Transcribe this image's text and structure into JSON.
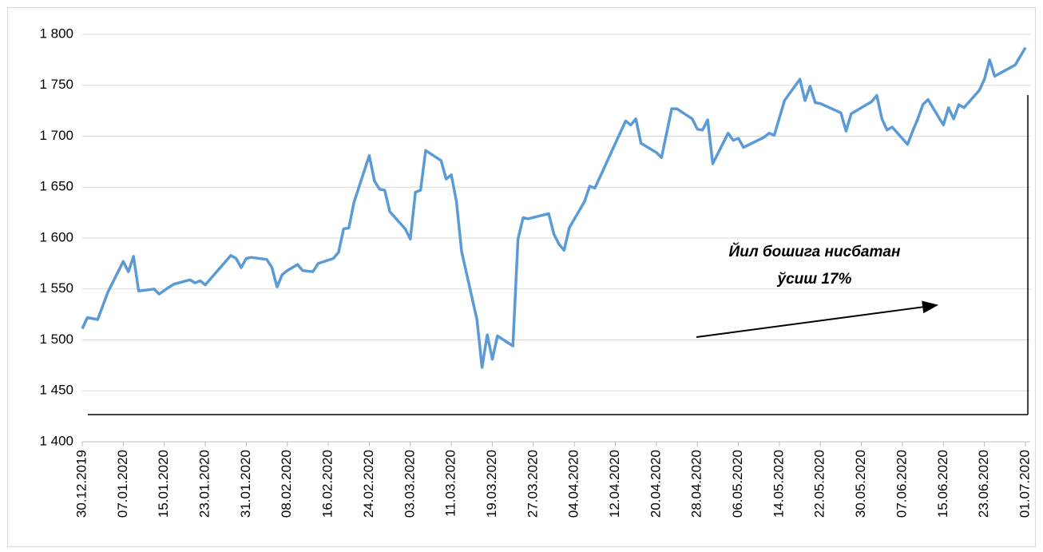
{
  "chart_data": {
    "type": "line",
    "x": [
      "30.12.2019",
      "31.12.2019",
      "02.01.2020",
      "04.01.2020",
      "07.01.2020",
      "08.01.2020",
      "09.01.2020",
      "10.01.2020",
      "13.01.2020",
      "14.01.2020",
      "16.01.2020",
      "17.01.2020",
      "20.01.2020",
      "21.01.2020",
      "22.01.2020",
      "23.01.2020",
      "28.01.2020",
      "29.01.2020",
      "30.01.2020",
      "31.01.2020",
      "01.02.2020",
      "04.02.2020",
      "05.02.2020",
      "06.02.2020",
      "07.02.2020",
      "08.02.2020",
      "10.02.2020",
      "11.02.2020",
      "13.02.2020",
      "14.02.2020",
      "17.02.2020",
      "18.02.2020",
      "19.02.2020",
      "20.02.2020",
      "21.02.2020",
      "24.02.2020",
      "25.02.2020",
      "26.02.2020",
      "27.02.2020",
      "28.02.2020",
      "02.03.2020",
      "03.03.2020",
      "04.03.2020",
      "05.03.2020",
      "06.03.2020",
      "09.03.2020",
      "10.03.2020",
      "11.03.2020",
      "12.03.2020",
      "13.03.2020",
      "16.03.2020",
      "17.03.2020",
      "18.03.2020",
      "19.03.2020",
      "20.03.2020",
      "23.03.2020",
      "24.03.2020",
      "25.03.2020",
      "26.03.2020",
      "30.03.2020",
      "31.03.2020",
      "01.04.2020",
      "02.04.2020",
      "03.04.2020",
      "06.04.2020",
      "07.04.2020",
      "08.04.2020",
      "09.04.2020",
      "14.04.2020",
      "15.04.2020",
      "16.04.2020",
      "17.04.2020",
      "20.04.2020",
      "21.04.2020",
      "23.04.2020",
      "24.04.2020",
      "27.04.2020",
      "28.04.2020",
      "29.04.2020",
      "30.04.2020",
      "01.05.2020",
      "04.05.2020",
      "05.05.2020",
      "06.05.2020",
      "07.05.2020",
      "11.05.2020",
      "12.05.2020",
      "13.05.2020",
      "15.05.2020",
      "18.05.2020",
      "19.05.2020",
      "20.05.2020",
      "21.05.2020",
      "22.05.2020",
      "26.05.2020",
      "27.05.2020",
      "28.05.2020",
      "29.05.2020",
      "01.06.2020",
      "02.06.2020",
      "03.06.2020",
      "04.06.2020",
      "05.06.2020",
      "08.06.2020",
      "09.06.2020",
      "10.06.2020",
      "11.06.2020",
      "12.06.2020",
      "15.06.2020",
      "16.06.2020",
      "17.06.2020",
      "18.06.2020",
      "19.06.2020",
      "22.06.2020",
      "23.06.2020",
      "24.06.2020",
      "25.06.2020",
      "29.06.2020",
      "01.07.2020"
    ],
    "series": [
      {
        "color": "#5b9bd5",
        "values": [
          1511,
          1522,
          1520,
          1547,
          1577,
          1567,
          1582,
          1548,
          1550,
          1545,
          1552,
          1555,
          1559,
          1556,
          1558,
          1554,
          1583,
          1580,
          1571,
          1580,
          1581,
          1579,
          1571,
          1552,
          1564,
          1568,
          1574,
          1568,
          1567,
          1575,
          1580,
          1586,
          1609,
          1610,
          1635,
          1681,
          1656,
          1648,
          1647,
          1626,
          1609,
          1599,
          1645,
          1647,
          1686,
          1676,
          1658,
          1662,
          1636,
          1587,
          1520,
          1473,
          1505,
          1481,
          1504,
          1494,
          1599,
          1620,
          1619,
          1624,
          1604,
          1594,
          1588,
          1610,
          1636,
          1651,
          1649,
          1660,
          1715,
          1711,
          1717,
          1693,
          1684,
          1679,
          1727,
          1727,
          1717,
          1707,
          1706,
          1716,
          1673,
          1703,
          1696,
          1698,
          1689,
          1699,
          1703,
          1701,
          1735,
          1756,
          1735,
          1749,
          1733,
          1732,
          1723,
          1705,
          1722,
          1725,
          1734,
          1740,
          1717,
          1706,
          1709,
          1692,
          1705,
          1717,
          1731,
          1736,
          1711,
          1728,
          1717,
          1731,
          1728,
          1745,
          1756,
          1775,
          1759,
          1770,
          1787
        ]
      }
    ],
    "xlim": [
      "30.12.2019",
      "01.07.2020"
    ],
    "xticks": [
      "30.12.2019",
      "07.01.2020",
      "15.01.2020",
      "23.01.2020",
      "31.01.2020",
      "08.02.2020",
      "16.02.2020",
      "24.02.2020",
      "03.03.2020",
      "11.03.2020",
      "19.03.2020",
      "27.03.2020",
      "04.04.2020",
      "12.04.2020",
      "20.04.2020",
      "28.04.2020",
      "06.05.2020",
      "14.05.2020",
      "22.05.2020",
      "30.05.2020",
      "07.06.2020",
      "15.06.2020",
      "23.06.2020",
      "01.07.2020"
    ],
    "ylim": [
      1400,
      1800
    ],
    "yticks": [
      {
        "value": 1400,
        "label": "1 400"
      },
      {
        "value": 1450,
        "label": "1 450"
      },
      {
        "value": 1500,
        "label": "1 500"
      },
      {
        "value": 1550,
        "label": "1 550"
      },
      {
        "value": 1600,
        "label": "1 600"
      },
      {
        "value": 1650,
        "label": "1 650"
      },
      {
        "value": 1700,
        "label": "1 700"
      },
      {
        "value": 1750,
        "label": "1 750"
      },
      {
        "value": 1800,
        "label": "1 800"
      }
    ],
    "grid": true,
    "annotations": [
      "Йил бошига нисбатан",
      "ўсиш 17%"
    ]
  }
}
